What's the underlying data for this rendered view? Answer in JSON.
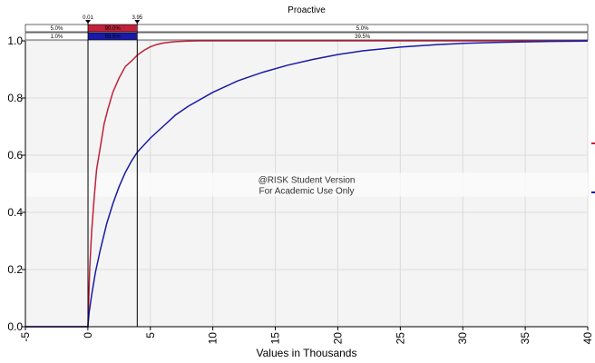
{
  "chart_data": {
    "type": "line",
    "title": "Proactive",
    "xlabel": "Values in Thousands",
    "ylabel": "",
    "xlim": [
      -5,
      40
    ],
    "ylim": [
      0,
      1.0
    ],
    "x_ticks": [
      -5,
      0,
      5,
      10,
      15,
      20,
      25,
      30,
      35,
      40
    ],
    "x_tick_labels": [
      "-5",
      "0",
      "5",
      "10",
      "15",
      "20",
      "25",
      "30",
      "35",
      "40"
    ],
    "y_ticks": [
      0.0,
      0.2,
      0.4,
      0.6,
      0.8,
      1.0
    ],
    "y_tick_labels": [
      "0.0",
      "0.2",
      "0.4",
      "0.6",
      "0.8",
      "1.0"
    ],
    "grid": true,
    "series": [
      {
        "color": "#c0203a",
        "x": [
          -5,
          0,
          0.15,
          0.3,
          0.5,
          0.7,
          1.0,
          1.3,
          1.6,
          2.0,
          2.5,
          3.0,
          3.5,
          3.95,
          4.5,
          5.0,
          5.5,
          6.0,
          6.5,
          7.0,
          8.0,
          9.0,
          40
        ],
        "y": [
          0,
          0,
          0.21,
          0.33,
          0.45,
          0.55,
          0.63,
          0.71,
          0.76,
          0.82,
          0.87,
          0.91,
          0.93,
          0.95,
          0.967,
          0.979,
          0.987,
          0.992,
          0.995,
          0.997,
          0.999,
          1.0,
          1.0
        ]
      },
      {
        "color": "#1a1aa6",
        "x": [
          -5,
          0,
          0.1,
          0.3,
          0.6,
          1.0,
          1.5,
          2.0,
          2.5,
          3.0,
          3.5,
          3.95,
          5.0,
          6.0,
          7.0,
          8.0,
          10.0,
          12.0,
          14.0,
          16.0,
          18.0,
          20.0,
          22.0,
          25.0,
          28.0,
          30.0,
          33.0,
          37.0,
          40.0
        ],
        "y": [
          0,
          0,
          0.05,
          0.11,
          0.19,
          0.27,
          0.36,
          0.43,
          0.49,
          0.54,
          0.58,
          0.61,
          0.66,
          0.7,
          0.74,
          0.77,
          0.82,
          0.86,
          0.89,
          0.915,
          0.935,
          0.952,
          0.965,
          0.978,
          0.987,
          0.991,
          0.995,
          0.998,
          0.999
        ]
      }
    ],
    "markers": {
      "left_value": "0.01",
      "right_value": "3.95",
      "left_x": 0.01,
      "right_x": 3.95
    },
    "percent_bands": [
      {
        "left": "5.0%",
        "middle": "90.0%",
        "right": "5.0%",
        "middle_color": "#c0203a"
      },
      {
        "left": "1.0%",
        "middle": "59.5%",
        "right": "39.5%",
        "middle_color": "#1a1aa6"
      }
    ],
    "watermark": [
      "@RISK Student Version",
      "For Academic Use Only"
    ]
  }
}
